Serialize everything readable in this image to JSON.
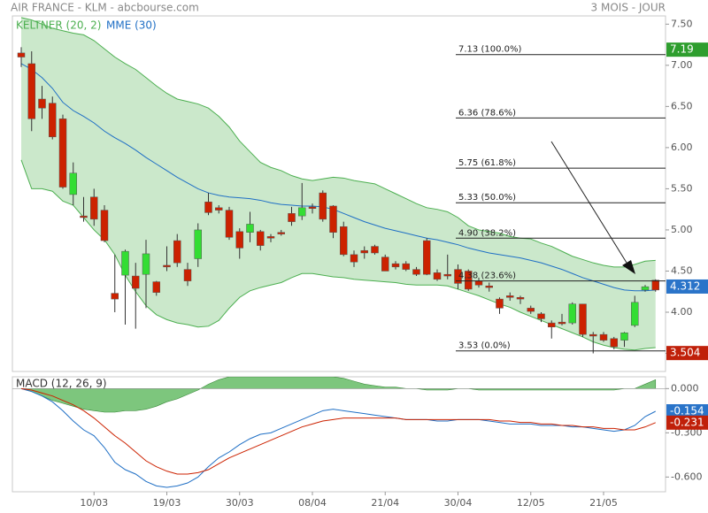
{
  "header": {
    "title": "AIR FRANCE - KLM - abcbourse.com",
    "period": "3 MOIS - JOUR"
  },
  "chart_data": [
    {
      "type": "candlestick",
      "ylim": [
        3.28,
        7.6
      ],
      "yticks": [
        {
          "value": 3.5,
          "label": "3.50"
        },
        {
          "value": 4,
          "label": "4.00"
        },
        {
          "value": 4.5,
          "label": "4.50"
        },
        {
          "value": 5,
          "label": "5.00"
        },
        {
          "value": 5.5,
          "label": "5.50"
        },
        {
          "value": 6,
          "label": "6.00"
        },
        {
          "value": 6.5,
          "label": "6.50"
        },
        {
          "value": 7,
          "label": "7.00"
        },
        {
          "value": 7.5,
          "label": "7.50"
        }
      ],
      "up_color": "#33dd33",
      "down_color": "#cc2200",
      "open": [
        7.15,
        7.02,
        6.59,
        6.54,
        6.35,
        5.43,
        5.17,
        5.4,
        5.24,
        4.23,
        4.45,
        4.44,
        4.46,
        4.37,
        4.57,
        4.87,
        4.52,
        4.65,
        5.34,
        5.27,
        5.24,
        4.98,
        4.97,
        4.98,
        4.92,
        4.97,
        5.2,
        5.17,
        5.28,
        5.45,
        5.29,
        5.04,
        4.7,
        4.75,
        4.8,
        4.67,
        4.59,
        4.59,
        4.52,
        4.87,
        4.48,
        4.46,
        4.52,
        4.5,
        4.38,
        4.32,
        4.16,
        4.2,
        4.18,
        4.05,
        3.98,
        3.87,
        3.88,
        3.87,
        4.1,
        3.73,
        3.73,
        3.68,
        3.66,
        3.84,
        4.27,
        4.39
      ],
      "high": [
        7.22,
        7.17,
        6.75,
        6.62,
        6.4,
        5.82,
        5.4,
        5.5,
        5.3,
        4.7,
        4.76,
        4.6,
        4.88,
        4.38,
        4.8,
        4.95,
        4.6,
        5.08,
        5.45,
        5.3,
        5.28,
        5.02,
        5.22,
        5.0,
        4.95,
        5.0,
        5.28,
        5.57,
        5.32,
        5.48,
        5.3,
        5.1,
        4.75,
        4.8,
        4.82,
        4.7,
        4.62,
        4.62,
        4.55,
        4.9,
        4.52,
        4.7,
        4.58,
        4.52,
        4.42,
        4.36,
        4.18,
        4.24,
        4.2,
        4.08,
        4.0,
        3.9,
        3.98,
        4.12,
        4.1,
        3.76,
        3.76,
        3.7,
        3.76,
        4.2,
        4.33,
        4.4
      ],
      "low": [
        6.98,
        6.2,
        6.35,
        6.1,
        5.5,
        5.3,
        5.1,
        5.05,
        4.85,
        4.0,
        3.85,
        3.8,
        4.05,
        4.2,
        4.5,
        4.55,
        4.32,
        4.55,
        5.18,
        5.2,
        4.88,
        4.65,
        4.85,
        4.75,
        4.85,
        4.93,
        5.05,
        5.12,
        5.2,
        5.1,
        4.9,
        4.68,
        4.55,
        4.65,
        4.7,
        4.5,
        4.52,
        4.5,
        4.44,
        4.45,
        4.38,
        4.4,
        4.28,
        4.26,
        4.3,
        4.25,
        3.98,
        4.14,
        4.1,
        3.98,
        3.88,
        3.68,
        3.84,
        3.85,
        3.7,
        3.5,
        3.64,
        3.55,
        3.58,
        3.82,
        4.25,
        4.25
      ],
      "close": [
        7.1,
        6.35,
        6.48,
        6.13,
        5.52,
        5.69,
        5.15,
        5.13,
        4.87,
        4.16,
        4.74,
        4.29,
        4.71,
        4.24,
        4.55,
        4.6,
        4.38,
        5.0,
        5.21,
        5.24,
        4.91,
        4.78,
        5.07,
        4.81,
        4.9,
        4.95,
        5.1,
        5.27,
        5.26,
        5.13,
        4.97,
        4.7,
        4.61,
        4.72,
        4.72,
        4.5,
        4.55,
        4.52,
        4.46,
        4.46,
        4.4,
        4.44,
        4.35,
        4.28,
        4.33,
        4.3,
        4.05,
        4.18,
        4.16,
        4.01,
        3.92,
        3.82,
        3.86,
        4.1,
        3.73,
        3.71,
        3.66,
        3.58,
        3.75,
        4.12,
        4.31,
        4.27
      ],
      "bands": {
        "name": "KELTNER (20, 2)",
        "color": "#4caf50",
        "fill": "#b9e0b9",
        "upper": [
          7.58,
          7.55,
          7.5,
          7.45,
          7.42,
          7.39,
          7.37,
          7.3,
          7.2,
          7.1,
          7.02,
          6.95,
          6.85,
          6.75,
          6.66,
          6.59,
          6.56,
          6.53,
          6.48,
          6.38,
          6.25,
          6.08,
          5.95,
          5.82,
          5.76,
          5.72,
          5.66,
          5.62,
          5.6,
          5.62,
          5.64,
          5.63,
          5.6,
          5.58,
          5.56,
          5.5,
          5.44,
          5.38,
          5.32,
          5.27,
          5.25,
          5.22,
          5.15,
          5.05,
          5.0,
          4.98,
          4.96,
          4.92,
          4.9,
          4.89,
          4.84,
          4.8,
          4.74,
          4.68,
          4.64,
          4.6,
          4.57,
          4.55,
          4.55,
          4.58,
          4.62,
          4.63
        ],
        "lower": [
          5.85,
          5.5,
          5.5,
          5.47,
          5.35,
          5.3,
          5.15,
          5.0,
          4.88,
          4.7,
          4.45,
          4.25,
          4.08,
          3.97,
          3.91,
          3.87,
          3.85,
          3.82,
          3.83,
          3.9,
          4.05,
          4.18,
          4.26,
          4.3,
          4.33,
          4.36,
          4.42,
          4.47,
          4.47,
          4.45,
          4.43,
          4.42,
          4.4,
          4.39,
          4.38,
          4.37,
          4.36,
          4.34,
          4.33,
          4.33,
          4.33,
          4.32,
          4.28,
          4.24,
          4.2,
          4.15,
          4.1,
          4.06,
          4.0,
          3.95,
          3.9,
          3.85,
          3.8,
          3.75,
          3.7,
          3.64,
          3.6,
          3.57,
          3.55,
          3.54,
          3.56,
          3.57
        ]
      },
      "series": [
        {
          "name": "MME (30)",
          "color": "#1f6fc5",
          "values": [
            7.02,
            6.95,
            6.85,
            6.72,
            6.55,
            6.45,
            6.38,
            6.3,
            6.2,
            6.12,
            6.05,
            5.97,
            5.88,
            5.8,
            5.72,
            5.64,
            5.57,
            5.5,
            5.45,
            5.42,
            5.4,
            5.39,
            5.38,
            5.36,
            5.33,
            5.31,
            5.3,
            5.29,
            5.29,
            5.28,
            5.25,
            5.2,
            5.15,
            5.1,
            5.06,
            5.02,
            4.99,
            4.96,
            4.93,
            4.9,
            4.88,
            4.85,
            4.82,
            4.78,
            4.75,
            4.72,
            4.7,
            4.68,
            4.66,
            4.63,
            4.6,
            4.56,
            4.52,
            4.47,
            4.42,
            4.38,
            4.34,
            4.3,
            4.27,
            4.26,
            4.26,
            4.27
          ]
        }
      ],
      "fib_levels": [
        {
          "value": 7.13,
          "label": "7.13 (100.0%)"
        },
        {
          "value": 6.36,
          "label": "6.36 (78.6%)"
        },
        {
          "value": 5.75,
          "label": "5.75 (61.8%)"
        },
        {
          "value": 5.33,
          "label": "5.33 (50.0%)"
        },
        {
          "value": 4.9,
          "label": "4.90 (38.2%)"
        },
        {
          "value": 4.38,
          "label": "4.38 (23.6%)"
        },
        {
          "value": 3.53,
          "label": "3.53 (0.0%)"
        }
      ],
      "price_tags": [
        {
          "value": 7.19,
          "label": "7.19",
          "color": "#2e9e2e"
        },
        {
          "value": 4.312,
          "label": "4.312",
          "color": "#2a74c9"
        },
        {
          "value": 3.504,
          "label": "3.504",
          "color": "#c0200a"
        }
      ]
    },
    {
      "type": "macd",
      "x": [
        null,
        null,
        null,
        null,
        null,
        null,
        null,
        "10/03",
        null,
        null,
        null,
        null,
        null,
        null,
        "19/03",
        null,
        null,
        null,
        null,
        null,
        null,
        "30/03",
        null,
        null,
        null,
        null,
        null,
        null,
        "08/04",
        null,
        null,
        null,
        null,
        null,
        null,
        "21/04",
        null,
        null,
        null,
        null,
        null,
        null,
        "30/04",
        null,
        null,
        null,
        null,
        null,
        null,
        "12/05",
        null,
        null,
        null,
        null,
        null,
        null,
        "21/05",
        null,
        null,
        null,
        null,
        null
      ],
      "ylim": [
        -0.7,
        0.08
      ],
      "yticks": [
        {
          "value": 0,
          "label": "0.000"
        },
        {
          "value": -0.3,
          "label": "-0.300"
        },
        {
          "value": -0.6,
          "label": "-0.600"
        }
      ],
      "histogram": {
        "color": "#5cb85c",
        "values": [
          0,
          -0.02,
          -0.05,
          -0.08,
          -0.1,
          -0.12,
          -0.14,
          -0.15,
          -0.16,
          -0.16,
          -0.15,
          -0.15,
          -0.14,
          -0.12,
          -0.09,
          -0.07,
          -0.04,
          -0.01,
          0.03,
          0.06,
          0.08,
          0.08,
          0.08,
          0.08,
          0.08,
          0.08,
          0.08,
          0.08,
          0.08,
          0.08,
          0.08,
          0.07,
          0.05,
          0.03,
          0.02,
          0.01,
          0.01,
          0,
          0,
          -0.01,
          -0.01,
          -0.01,
          0,
          0,
          -0.01,
          -0.01,
          -0.01,
          -0.01,
          -0.01,
          -0.01,
          -0.01,
          -0.01,
          -0.01,
          -0.01,
          -0.01,
          -0.01,
          -0.01,
          -0.01,
          0,
          0,
          0.03,
          0.06
        ]
      },
      "series": [
        {
          "name": "MACD (12, 26, 9)",
          "color": "#1f6fc5",
          "values": [
            0,
            -0.02,
            -0.05,
            -0.09,
            -0.15,
            -0.22,
            -0.28,
            -0.32,
            -0.4,
            -0.5,
            -0.55,
            -0.58,
            -0.63,
            -0.66,
            -0.67,
            -0.66,
            -0.64,
            -0.6,
            -0.53,
            -0.47,
            -0.43,
            -0.38,
            -0.34,
            -0.31,
            -0.3,
            -0.27,
            -0.24,
            -0.21,
            -0.18,
            -0.15,
            -0.14,
            -0.15,
            -0.16,
            -0.17,
            -0.18,
            -0.19,
            -0.2,
            -0.21,
            -0.21,
            -0.21,
            -0.22,
            -0.22,
            -0.21,
            -0.21,
            -0.21,
            -0.22,
            -0.23,
            -0.24,
            -0.24,
            -0.24,
            -0.25,
            -0.25,
            -0.25,
            -0.26,
            -0.26,
            -0.27,
            -0.28,
            -0.29,
            -0.28,
            -0.25,
            -0.19,
            -0.154
          ]
        },
        {
          "color": "#cc2200",
          "values": [
            0,
            -0.01,
            -0.03,
            -0.05,
            -0.08,
            -0.11,
            -0.15,
            -0.2,
            -0.26,
            -0.32,
            -0.37,
            -0.43,
            -0.49,
            -0.53,
            -0.56,
            -0.58,
            -0.58,
            -0.57,
            -0.55,
            -0.51,
            -0.47,
            -0.44,
            -0.41,
            -0.38,
            -0.35,
            -0.32,
            -0.29,
            -0.26,
            -0.24,
            -0.22,
            -0.21,
            -0.2,
            -0.2,
            -0.2,
            -0.2,
            -0.2,
            -0.2,
            -0.21,
            -0.21,
            -0.21,
            -0.21,
            -0.21,
            -0.21,
            -0.21,
            -0.21,
            -0.21,
            -0.22,
            -0.22,
            -0.23,
            -0.23,
            -0.24,
            -0.24,
            -0.25,
            -0.25,
            -0.26,
            -0.26,
            -0.27,
            -0.27,
            -0.28,
            -0.28,
            -0.26,
            -0.231
          ]
        }
      ],
      "price_tags": [
        {
          "value": -0.154,
          "label": "-0.154",
          "color": "#2a74c9"
        },
        {
          "value": -0.231,
          "label": "-0.231",
          "color": "#c0200a"
        }
      ]
    }
  ]
}
